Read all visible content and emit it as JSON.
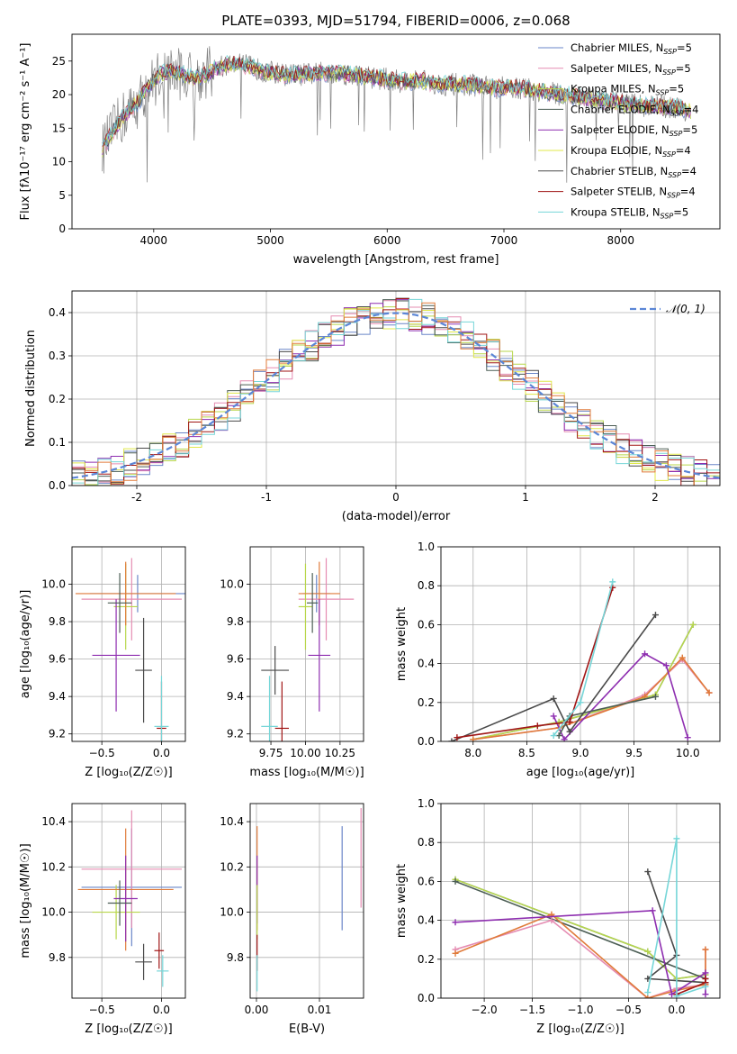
{
  "figure_title": "PLATE=0393, MJD=51794, FIBERID=0006, z=0.068",
  "colors": {
    "Chabrier MILES": "#6a86c8",
    "Salpeter MILES": "#e58cb2",
    "Kroupa MILES": "#b7d64a",
    "Chabrier ELODIE": "#4c5e55",
    "Salpeter ELODIE": "#8e2eb0",
    "Kroupa ELODIE": "#e0e84a",
    "Chabrier STELIB": "#4a4a4a",
    "Salpeter STELIB": "#a01515",
    "Kroupa STELIB": "#76d6d8",
    "orange": "#e07b3a",
    "gaussian": "#5b86d6",
    "grid": "#b0b0b0",
    "data": "#808080"
  },
  "chart_data": [
    {
      "id": "spectrum",
      "type": "line",
      "title": "PLATE=0393, MJD=51794, FIBERID=0006, z=0.068",
      "xlabel": "wavelength [Angstrom, rest frame]",
      "ylabel": "Flux [fλ10⁻¹⁷ erg cm⁻² s⁻¹ A⁻¹]",
      "xlim": [
        3300,
        8850
      ],
      "ylim": [
        0,
        29
      ],
      "xticks": [
        4000,
        5000,
        6000,
        7000,
        8000
      ],
      "yticks": [
        0,
        5,
        10,
        15,
        20,
        25
      ],
      "legend": "top-right",
      "grid": false,
      "legend_entries": [
        {
          "name": "Chabrier MILES, N",
          "sub": "SSP",
          "suffix": "=5"
        },
        {
          "name": "Salpeter MILES, N",
          "sub": "SSP",
          "suffix": "=5"
        },
        {
          "name": "Kroupa MILES, N",
          "sub": "SSP",
          "suffix": "=5"
        },
        {
          "name": "Chabrier ELODIE, N",
          "sub": "SSP",
          "suffix": "=4"
        },
        {
          "name": "Salpeter ELODIE, N",
          "sub": "SSP",
          "suffix": "=5"
        },
        {
          "name": "Kroupa ELODIE, N",
          "sub": "SSP",
          "suffix": "=4"
        },
        {
          "name": "Chabrier STELIB, N",
          "sub": "SSP",
          "suffix": "=4"
        },
        {
          "name": "Salpeter STELIB, N",
          "sub": "SSP",
          "suffix": "=4"
        },
        {
          "name": "Kroupa STELIB, N",
          "sub": "SSP",
          "suffix": "=5"
        }
      ],
      "continuum": {
        "x": [
          3550,
          3650,
          3750,
          3850,
          3950,
          4050,
          4150,
          4250,
          4350,
          4450,
          4550,
          4650,
          4750,
          4850,
          4950,
          5100,
          5300,
          5500,
          5700,
          5900,
          6100,
          6300,
          6500,
          6700,
          6900,
          7100,
          7300,
          7500,
          7700,
          7900,
          8100,
          8300,
          8500,
          8600
        ],
        "y": [
          11.5,
          14.5,
          17,
          18.5,
          21,
          23,
          23.5,
          23,
          22.5,
          23,
          24,
          24.5,
          24.5,
          24,
          23.5,
          23,
          23,
          23.3,
          23,
          22.5,
          22,
          22,
          21.5,
          21.5,
          21,
          21,
          20.5,
          20,
          19.5,
          19,
          18.5,
          18.3,
          18,
          17.5
        ]
      }
    },
    {
      "id": "residuals",
      "type": "step",
      "xlabel": "(data-model)/error",
      "ylabel": "Normed distribution",
      "xlim": [
        -2.5,
        2.5
      ],
      "ylim": [
        0,
        0.45
      ],
      "xticks": [
        -2,
        -1,
        0,
        1,
        2
      ],
      "yticks": [
        0.0,
        0.1,
        0.2,
        0.3,
        0.4
      ],
      "grid": true,
      "legend": "top-right",
      "gaussian_label": "𝒩(0, 1)",
      "gaussian": {
        "mu": 0,
        "sigma": 1
      }
    },
    {
      "id": "age-vs-Z",
      "type": "errorbar",
      "xlabel": "Z [log₁₀(Z/Z☉)]",
      "ylabel": "age  [log₁₀(age/yr)]",
      "xlim": [
        -0.75,
        0.2
      ],
      "ylim": [
        9.16,
        10.2
      ],
      "xticks": [
        -0.5,
        0.0
      ],
      "yticks": [
        9.2,
        9.4,
        9.6,
        9.8,
        10.0
      ],
      "grid": true,
      "points": [
        {
          "s": "Chabrier MILES",
          "x": -0.2,
          "xe": 0.4,
          "y": 9.95,
          "ye": 0.1
        },
        {
          "s": "Salpeter MILES",
          "x": -0.25,
          "xe": 0.42,
          "y": 9.92,
          "ye": 0.22
        },
        {
          "s": "Kroupa MILES",
          "x": -0.3,
          "xe": 0.1,
          "y": 9.88,
          "ye": 0.23
        },
        {
          "s": "orange",
          "x": -0.3,
          "xe": 0.42,
          "y": 9.95,
          "ye": 0.17
        },
        {
          "s": "Salpeter ELODIE",
          "x": -0.38,
          "xe": 0.2,
          "y": 9.62,
          "ye": 0.3
        },
        {
          "s": "Chabrier ELODIE",
          "x": -0.35,
          "xe": 0.1,
          "y": 9.9,
          "ye": 0.16
        },
        {
          "s": "Chabrier STELIB",
          "x": -0.15,
          "xe": 0.07,
          "y": 9.54,
          "ye": 0.28
        },
        {
          "s": "Salpeter STELIB",
          "x": 0.0,
          "xe": 0.04,
          "y": 9.23,
          "ye": 0.25
        },
        {
          "s": "Kroupa STELIB",
          "x": 0.0,
          "xe": 0.06,
          "y": 9.24,
          "ye": 0.27
        }
      ]
    },
    {
      "id": "age-vs-mass",
      "type": "errorbar",
      "xlabel": "mass [log₁₀(M/M☉)]",
      "ylabel": "",
      "xlim": [
        9.6,
        10.42
      ],
      "ylim": [
        9.16,
        10.2
      ],
      "xticks": [
        9.75,
        10.0,
        10.25
      ],
      "yticks": [
        9.2,
        9.4,
        9.6,
        9.8,
        10.0
      ],
      "grid": true,
      "points": [
        {
          "s": "Chabrier MILES",
          "x": 10.08,
          "xe": 0.1,
          "y": 9.95,
          "ye": 0.1
        },
        {
          "s": "Salpeter MILES",
          "x": 10.15,
          "xe": 0.2,
          "y": 9.92,
          "ye": 0.22
        },
        {
          "s": "Kroupa MILES",
          "x": 10.0,
          "xe": 0.05,
          "y": 9.88,
          "ye": 0.23
        },
        {
          "s": "orange",
          "x": 10.1,
          "xe": 0.15,
          "y": 9.95,
          "ye": 0.17
        },
        {
          "s": "Salpeter ELODIE",
          "x": 10.1,
          "xe": 0.08,
          "y": 9.62,
          "ye": 0.3
        },
        {
          "s": "Chabrier ELODIE",
          "x": 10.05,
          "xe": 0.04,
          "y": 9.9,
          "ye": 0.16
        },
        {
          "s": "Chabrier STELIB",
          "x": 9.78,
          "xe": 0.1,
          "y": 9.54,
          "ye": 0.13
        },
        {
          "s": "Salpeter STELIB",
          "x": 9.83,
          "xe": 0.05,
          "y": 9.23,
          "ye": 0.25
        },
        {
          "s": "Kroupa STELIB",
          "x": 9.74,
          "xe": 0.06,
          "y": 9.24,
          "ye": 0.27
        }
      ]
    },
    {
      "id": "weight-vs-age",
      "type": "line",
      "xlabel": "age  [log₁₀(age/yr)]",
      "ylabel": "mass weight",
      "xlim": [
        7.7,
        10.3
      ],
      "ylim": [
        0,
        1.0
      ],
      "xticks": [
        8.0,
        8.5,
        9.0,
        9.5,
        10.0
      ],
      "yticks": [
        0.0,
        0.2,
        0.4,
        0.6,
        0.8,
        1.0
      ],
      "grid": true,
      "series": [
        {
          "s": "Chabrier MILES",
          "x": [
            8.0,
            8.8,
            9.7,
            10.05
          ],
          "y": [
            0.01,
            0.1,
            0.24,
            0.6
          ]
        },
        {
          "s": "Salpeter MILES",
          "x": [
            8.0,
            8.8,
            9.6,
            9.95,
            10.2
          ],
          "y": [
            0.01,
            0.07,
            0.24,
            0.42,
            0.25
          ]
        },
        {
          "s": "Kroupa MILES",
          "x": [
            8.0,
            8.8,
            9.7,
            10.05
          ],
          "y": [
            0.01,
            0.1,
            0.24,
            0.6
          ]
        },
        {
          "s": "orange",
          "x": [
            8.0,
            8.8,
            9.6,
            9.95,
            10.2
          ],
          "y": [
            0.01,
            0.07,
            0.23,
            0.43,
            0.25
          ]
        },
        {
          "s": "Salpeter ELODIE",
          "x": [
            8.75,
            8.85,
            9.6,
            9.8,
            10.0
          ],
          "y": [
            0.13,
            0.01,
            0.45,
            0.39,
            0.02
          ]
        },
        {
          "s": "Chabrier ELODIE",
          "x": [
            8.8,
            8.9,
            9.7
          ],
          "y": [
            0.03,
            0.13,
            0.23
          ]
        },
        {
          "s": "Chabrier STELIB",
          "x": [
            7.8,
            8.75,
            8.9,
            9.7
          ],
          "y": [
            0.0,
            0.22,
            0.05,
            0.65
          ]
        },
        {
          "s": "Salpeter STELIB",
          "x": [
            7.85,
            8.6,
            8.9,
            9.3
          ],
          "y": [
            0.02,
            0.08,
            0.1,
            0.79
          ]
        },
        {
          "s": "Kroupa STELIB",
          "x": [
            8.75,
            9.0,
            9.3
          ],
          "y": [
            0.03,
            0.2,
            0.82
          ]
        }
      ]
    },
    {
      "id": "mass-vs-Z",
      "type": "errorbar",
      "xlabel": "Z [log₁₀(Z/Z☉)]",
      "ylabel": "mass [log₁₀(M/M☉)]",
      "xlim": [
        -0.75,
        0.2
      ],
      "ylim": [
        9.62,
        10.48
      ],
      "xticks": [
        -0.5,
        0.0
      ],
      "yticks": [
        9.8,
        10.0,
        10.2,
        10.4
      ],
      "grid": true,
      "points": [
        {
          "s": "Chabrier MILES",
          "x": -0.25,
          "xe": 0.42,
          "y": 10.11,
          "ye": 0.26
        },
        {
          "s": "Salpeter MILES",
          "x": -0.25,
          "xe": 0.42,
          "y": 10.19,
          "ye": 0.26
        },
        {
          "s": "Kroupa MILES",
          "x": -0.38,
          "xe": 0.2,
          "y": 10.0,
          "ye": 0.12
        },
        {
          "s": "orange",
          "x": -0.3,
          "xe": 0.4,
          "y": 10.1,
          "ye": 0.27
        },
        {
          "s": "Salpeter ELODIE",
          "x": -0.3,
          "xe": 0.1,
          "y": 10.06,
          "ye": 0.19
        },
        {
          "s": "Chabrier ELODIE",
          "x": -0.35,
          "xe": 0.1,
          "y": 10.04,
          "ye": 0.1
        },
        {
          "s": "Chabrier STELIB",
          "x": -0.15,
          "xe": 0.07,
          "y": 9.78,
          "ye": 0.08
        },
        {
          "s": "Salpeter STELIB",
          "x": -0.02,
          "xe": 0.04,
          "y": 9.83,
          "ye": 0.08
        },
        {
          "s": "Kroupa STELIB",
          "x": 0.01,
          "xe": 0.05,
          "y": 9.74,
          "ye": 0.07
        }
      ]
    },
    {
      "id": "mass-vs-EBV",
      "type": "errorbar",
      "xlabel": "E(B-V)",
      "ylabel": "",
      "xlim": [
        -0.001,
        0.017
      ],
      "ylim": [
        9.62,
        10.48
      ],
      "xticks": [
        0.0,
        0.01
      ],
      "yticks": [
        9.8,
        10.0,
        10.2,
        10.4
      ],
      "grid": true,
      "points": [
        {
          "s": "Chabrier MILES",
          "x": 0.0136,
          "xe": 0,
          "y": 10.15,
          "ye": 0.23
        },
        {
          "s": "Salpeter MILES",
          "x": 0.0166,
          "xe": 0,
          "y": 10.24,
          "ye": 0.22
        },
        {
          "s": "orange",
          "x": 0.0001,
          "xe": 0,
          "y": 10.15,
          "ye": 0.23
        },
        {
          "s": "Salpeter ELODIE",
          "x": 0.0001,
          "xe": 0,
          "y": 10.1,
          "ye": 0.15
        },
        {
          "s": "Kroupa MILES",
          "x": 0.0001,
          "xe": 0,
          "y": 10.0,
          "ye": 0.12
        },
        {
          "s": "Salpeter STELIB",
          "x": 0.0001,
          "xe": 0,
          "y": 9.82,
          "ye": 0.08
        },
        {
          "s": "Kroupa STELIB",
          "x": 0.0001,
          "xe": 0,
          "y": 9.73,
          "ye": 0.08
        }
      ]
    },
    {
      "id": "weight-vs-Z",
      "type": "line",
      "xlabel": "Z [log₁₀(Z/Z☉)]",
      "ylabel": "mass weight",
      "xlim": [
        -2.45,
        0.45
      ],
      "ylim": [
        0,
        1.0
      ],
      "xticks": [
        -2.0,
        -1.5,
        -1.0,
        -0.5,
        0.0
      ],
      "yticks": [
        0.0,
        0.2,
        0.4,
        0.6,
        0.8,
        1.0
      ],
      "grid": true,
      "series": [
        {
          "s": "Chabrier MILES",
          "x": [
            -2.3,
            -0.3,
            0.0,
            0.3
          ],
          "y": [
            0.61,
            0.24,
            0.1,
            0.12
          ]
        },
        {
          "s": "Kroupa MILES",
          "x": [
            -2.3,
            -0.3,
            0.0,
            0.3
          ],
          "y": [
            0.61,
            0.24,
            0.1,
            0.12
          ]
        },
        {
          "s": "Chabrier ELODIE",
          "x": [
            -2.3,
            0.3
          ],
          "y": [
            0.6,
            0.1
          ]
        },
        {
          "s": "Salpeter MILES",
          "x": [
            -2.3,
            -1.3,
            -0.3,
            0.0,
            0.3,
            0.3
          ],
          "y": [
            0.25,
            0.4,
            0.0,
            0.05,
            0.07,
            0.25
          ]
        },
        {
          "s": "orange",
          "x": [
            -2.3,
            -1.3,
            -0.3,
            0.0,
            0.3,
            0.3
          ],
          "y": [
            0.23,
            0.43,
            0.0,
            0.04,
            0.07,
            0.25
          ]
        },
        {
          "s": "Salpeter ELODIE",
          "x": [
            -2.3,
            -0.25,
            -0.05,
            0.3,
            0.3
          ],
          "y": [
            0.39,
            0.45,
            0.02,
            0.13,
            0.02
          ]
        },
        {
          "s": "Chabrier STELIB",
          "x": [
            -0.3,
            0.0,
            -0.3,
            0.3
          ],
          "y": [
            0.65,
            0.22,
            0.1,
            0.08
          ]
        },
        {
          "s": "Salpeter STELIB",
          "x": [
            0.0,
            0.3,
            0.3
          ],
          "y": [
            0.02,
            0.08,
            0.1
          ]
        },
        {
          "s": "Kroupa STELIB",
          "x": [
            -0.3,
            0.0,
            0.0,
            0.3
          ],
          "y": [
            0.03,
            0.82,
            0.01,
            0.06
          ]
        }
      ]
    }
  ]
}
